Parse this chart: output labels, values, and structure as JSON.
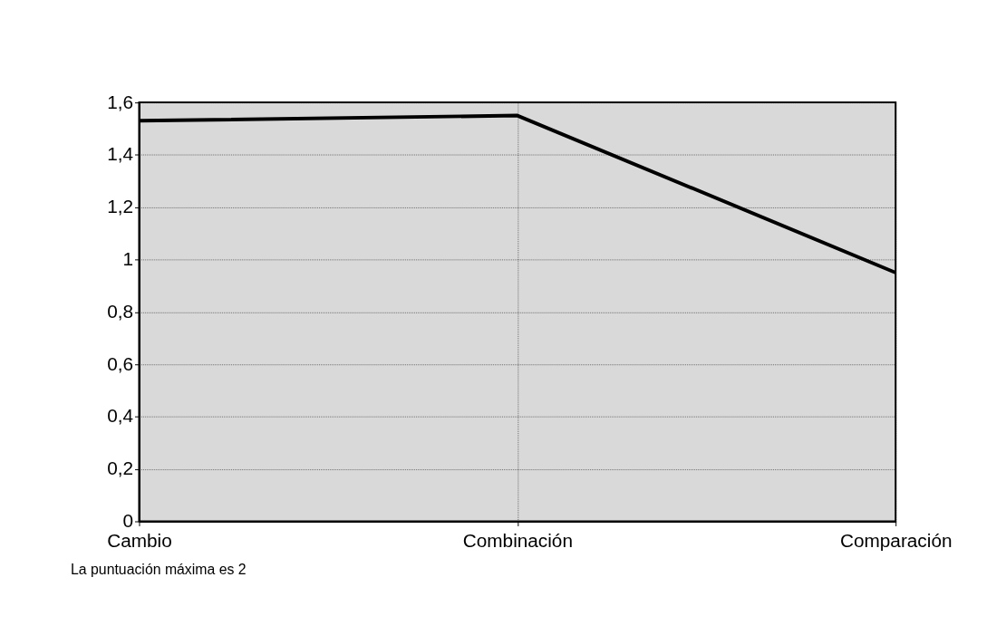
{
  "chart_data": {
    "type": "line",
    "categories": [
      "Cambio",
      "Combinación",
      "Comparación"
    ],
    "series": [
      {
        "color": "#000000",
        "values": [
          1.53,
          1.55,
          0.95
        ]
      }
    ],
    "ylim": [
      0,
      1.6
    ],
    "yticks": [
      0,
      {
        "value": 0.2,
        "label": "0,2"
      },
      {
        "value": 0.4,
        "label": "0,4"
      },
      {
        "value": 0.6,
        "label": "0,6"
      },
      {
        "value": 0.8,
        "label": "0,8"
      },
      1,
      {
        "value": 1.2,
        "label": "1,2"
      },
      {
        "value": 1.4,
        "label": "1,4"
      },
      {
        "value": 1.6,
        "label": "1,6"
      }
    ],
    "grid": true,
    "marker": "none",
    "line_style": "solid",
    "annotations": [
      "La puntuación máxima es 2"
    ]
  }
}
